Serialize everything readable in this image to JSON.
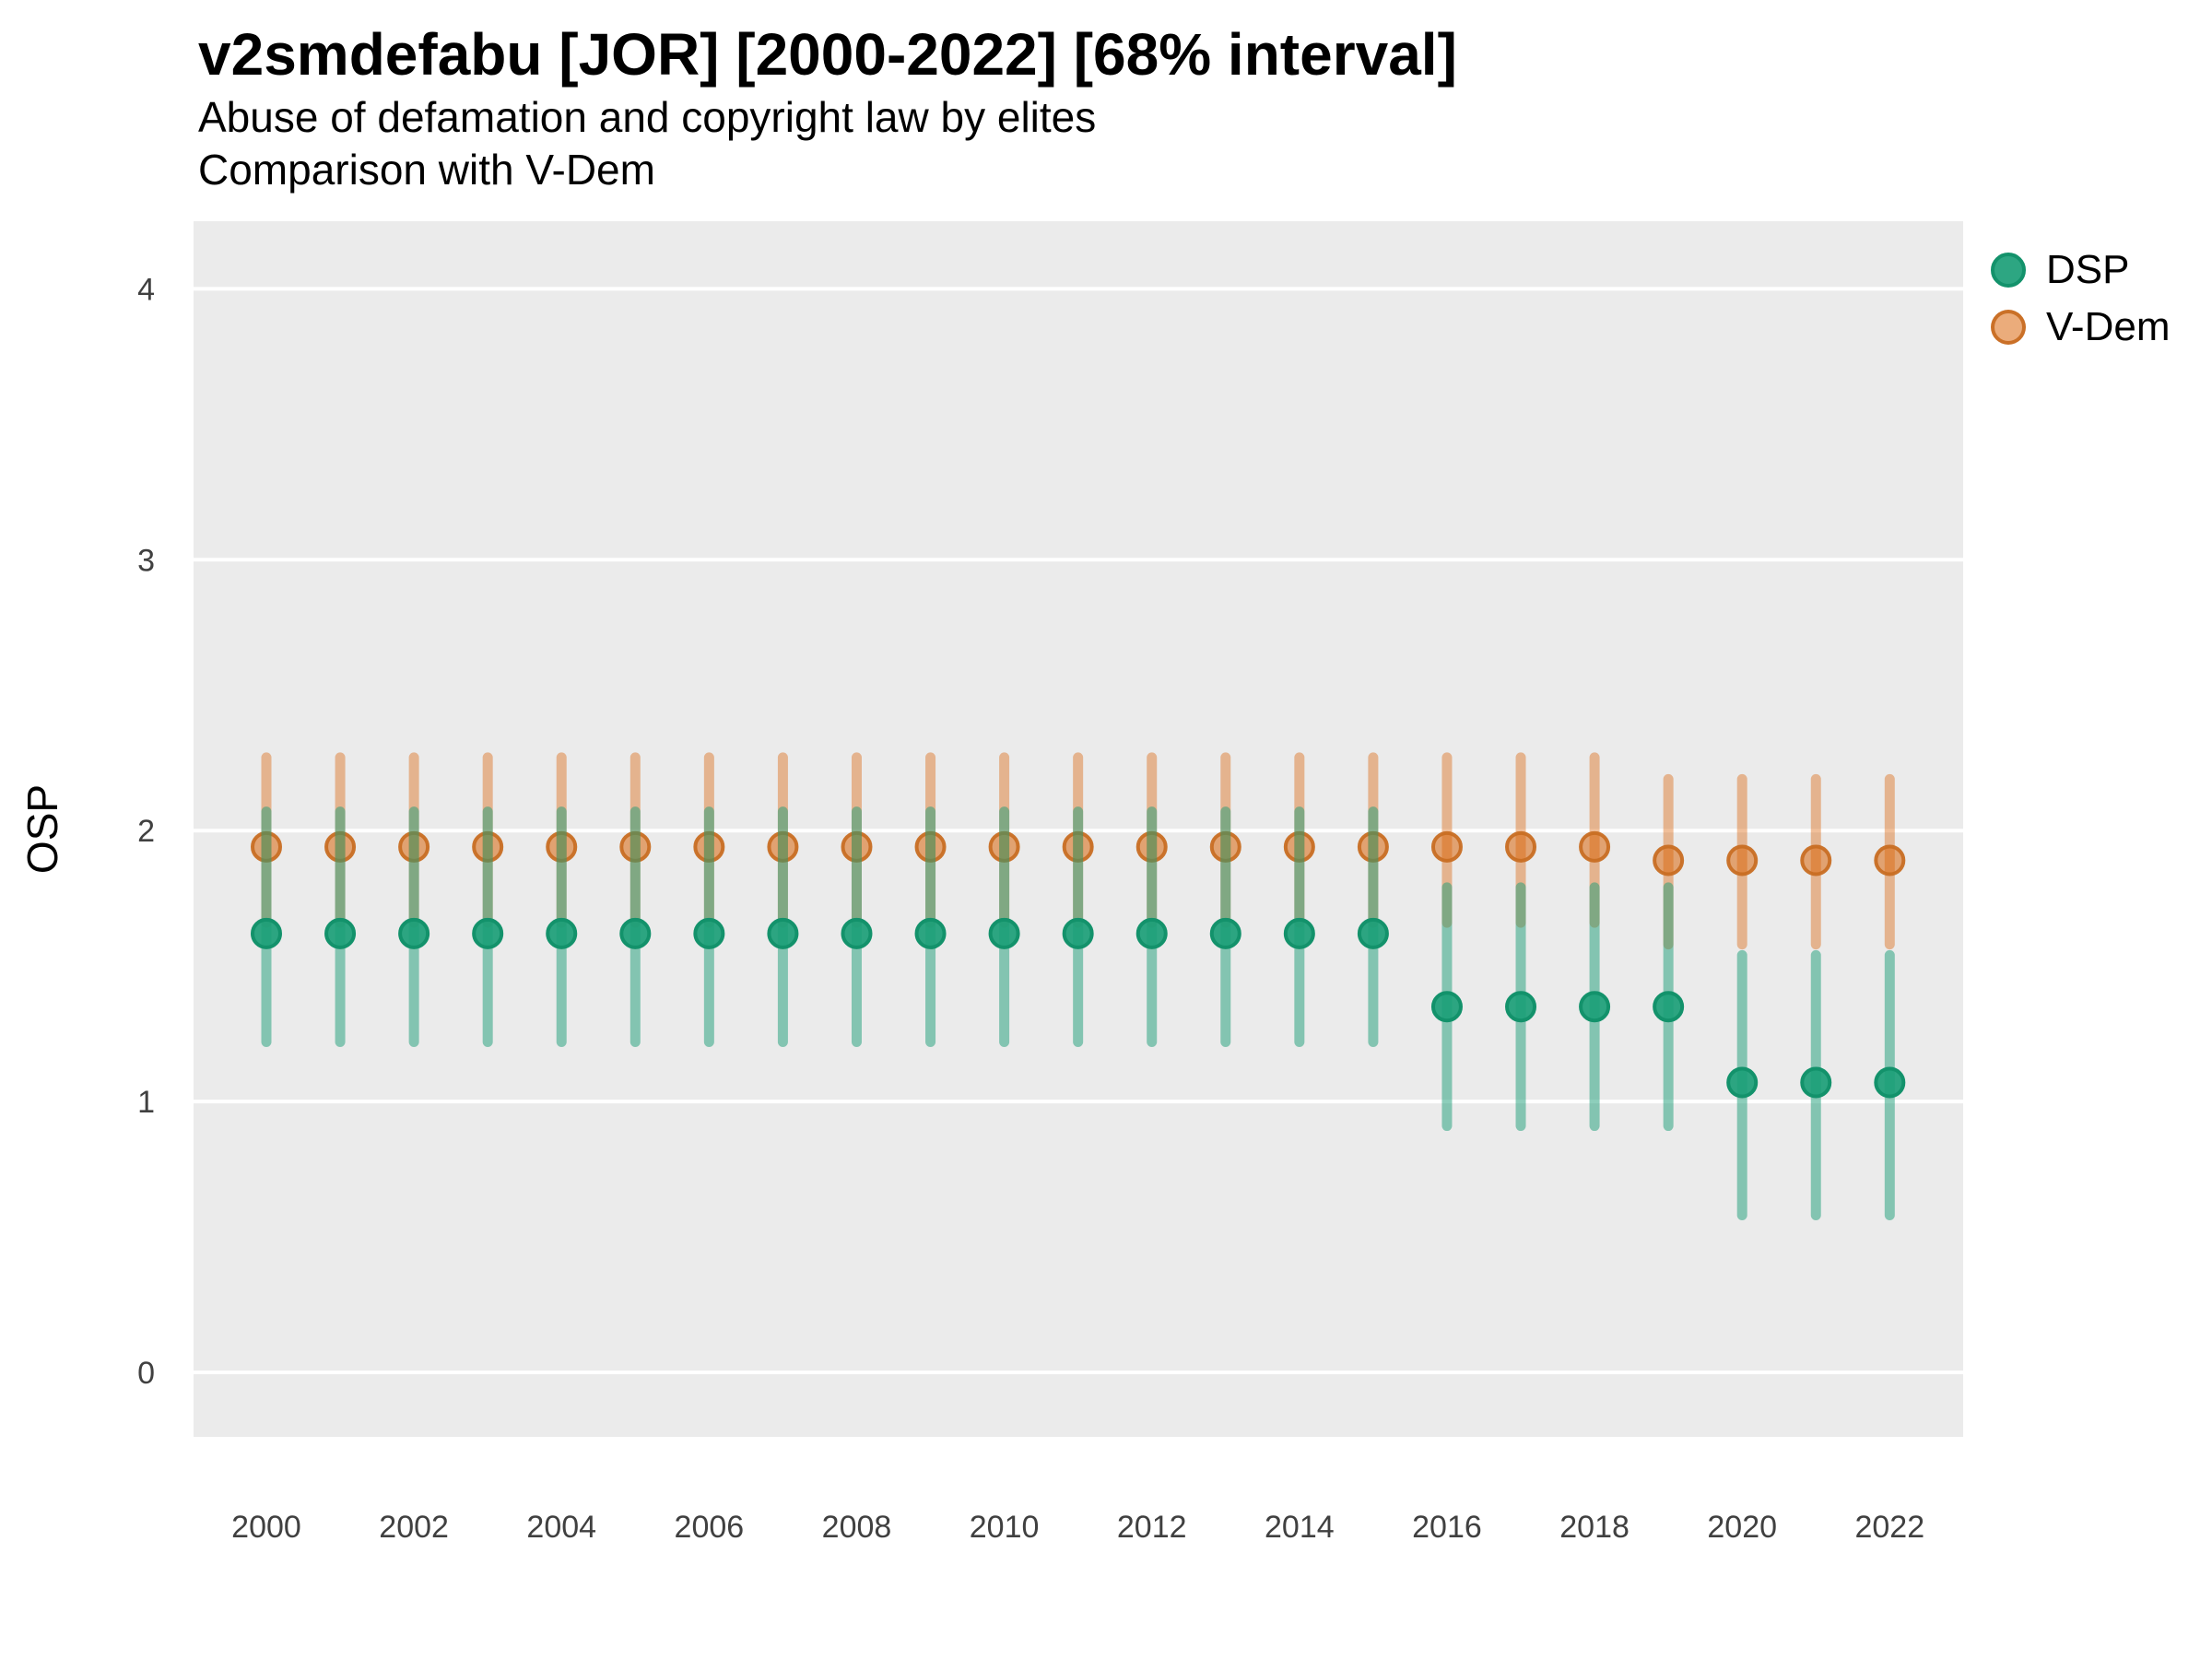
{
  "header": {
    "title": "v2smdefabu [JOR] [2000-2022] [68% interval]",
    "subtitle1": "Abuse of defamation and copyright law by elites",
    "subtitle2": "Comparison with V-Dem"
  },
  "legend": {
    "items": [
      {
        "label": "DSP",
        "dot_fill": "rgba(27,158,119,0.92)",
        "dot_stroke": "#13926B"
      },
      {
        "label": "V-Dem",
        "dot_fill": "rgba(217,95,2,0.52)",
        "dot_stroke": "rgba(200,110,35,0.95)"
      }
    ]
  },
  "chart_data": {
    "type": "scatter",
    "variant": "pointrange",
    "title": "v2smdefabu [JOR] [2000-2022] [68% interval]",
    "subtitle": [
      "Abuse of defamation and copyright law by elites",
      "Comparison with V-Dem"
    ],
    "xlabel": "",
    "ylabel": "OSP",
    "interval_level": "68%",
    "x": [
      2000,
      2001,
      2002,
      2003,
      2004,
      2005,
      2006,
      2007,
      2008,
      2009,
      2010,
      2011,
      2012,
      2013,
      2014,
      2015,
      2016,
      2017,
      2018,
      2019,
      2020,
      2021,
      2022
    ],
    "xtick_labels": [
      "2000",
      "2002",
      "2004",
      "2006",
      "2008",
      "2010",
      "2012",
      "2014",
      "2016",
      "2018",
      "2020",
      "2022"
    ],
    "yticks": [
      0,
      1,
      2,
      3,
      4
    ],
    "ylim": [
      -0.24,
      4.25
    ],
    "grid": "white major horizontal gridlines on gray panel",
    "legend_position": "right",
    "panel_bg": "#EBEBEB",
    "gridline_color": "#FFFFFF",
    "tick_label_color": "#404040",
    "series": [
      {
        "name": "DSP",
        "base_color": "#1B9E77",
        "line_color": "rgba(27,158,119,0.50)",
        "dot_fill": "rgba(27,158,119,0.92)",
        "dot_stroke": "#13926B",
        "values": [
          1.62,
          1.62,
          1.62,
          1.62,
          1.62,
          1.62,
          1.62,
          1.62,
          1.62,
          1.62,
          1.62,
          1.62,
          1.62,
          1.62,
          1.62,
          1.62,
          1.35,
          1.35,
          1.35,
          1.35,
          1.07,
          1.07,
          1.07
        ],
        "lower": [
          1.22,
          1.22,
          1.22,
          1.22,
          1.22,
          1.22,
          1.22,
          1.22,
          1.22,
          1.22,
          1.22,
          1.22,
          1.22,
          1.22,
          1.22,
          1.22,
          0.91,
          0.91,
          0.91,
          0.91,
          0.58,
          0.58,
          0.58
        ],
        "upper": [
          2.07,
          2.07,
          2.07,
          2.07,
          2.07,
          2.07,
          2.07,
          2.07,
          2.07,
          2.07,
          2.07,
          2.07,
          2.07,
          2.07,
          2.07,
          2.07,
          1.79,
          1.79,
          1.79,
          1.79,
          1.54,
          1.54,
          1.54
        ]
      },
      {
        "name": "V-Dem",
        "base_color": "#D95F02",
        "line_color": "rgba(217,95,2,0.40)",
        "dot_fill": "rgba(217,95,2,0.52)",
        "dot_stroke": "rgba(200,110,35,0.95)",
        "values": [
          1.94,
          1.94,
          1.94,
          1.94,
          1.94,
          1.94,
          1.94,
          1.94,
          1.94,
          1.94,
          1.94,
          1.94,
          1.94,
          1.94,
          1.94,
          1.94,
          1.94,
          1.94,
          1.94,
          1.89,
          1.89,
          1.89,
          1.89
        ],
        "lower": [
          1.66,
          1.66,
          1.66,
          1.66,
          1.66,
          1.66,
          1.66,
          1.66,
          1.66,
          1.66,
          1.66,
          1.66,
          1.66,
          1.66,
          1.66,
          1.66,
          1.66,
          1.66,
          1.66,
          1.58,
          1.58,
          1.58,
          1.58
        ],
        "upper": [
          2.27,
          2.27,
          2.27,
          2.27,
          2.27,
          2.27,
          2.27,
          2.27,
          2.27,
          2.27,
          2.27,
          2.27,
          2.27,
          2.27,
          2.27,
          2.27,
          2.27,
          2.27,
          2.27,
          2.19,
          2.19,
          2.19,
          2.19
        ]
      }
    ]
  }
}
